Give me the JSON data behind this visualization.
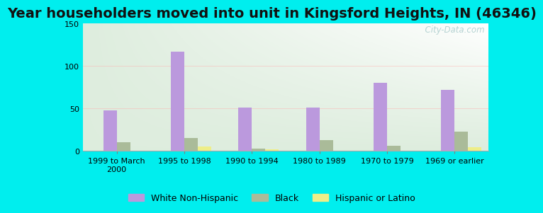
{
  "title": "Year householders moved into unit in Kingsford Heights, IN (46346)",
  "categories": [
    "1999 to March\n2000",
    "1995 to 1998",
    "1990 to 1994",
    "1980 to 1989",
    "1970 to 1979",
    "1969 or earlier"
  ],
  "series": {
    "White Non-Hispanic": [
      48,
      117,
      51,
      51,
      80,
      72
    ],
    "Black": [
      10,
      15,
      3,
      13,
      6,
      23
    ],
    "Hispanic or Latino": [
      0,
      5,
      2,
      0,
      0,
      4
    ]
  },
  "colors": {
    "White Non-Hispanic": "#bb99dd",
    "Black": "#aabb99",
    "Hispanic or Latino": "#eeee88"
  },
  "ylim": [
    0,
    150
  ],
  "yticks": [
    0,
    50,
    100,
    150
  ],
  "bar_width": 0.2,
  "background_color": "#00eeee",
  "plot_bg_topleft": "#ddeecc",
  "plot_bg_topright": "#eef8f8",
  "plot_bg_bottomleft": "#ccddbb",
  "plot_bg_bottomright": "#ffffff",
  "watermark": "  City-Data.com",
  "title_fontsize": 14,
  "tick_fontsize": 8,
  "legend_fontsize": 9
}
